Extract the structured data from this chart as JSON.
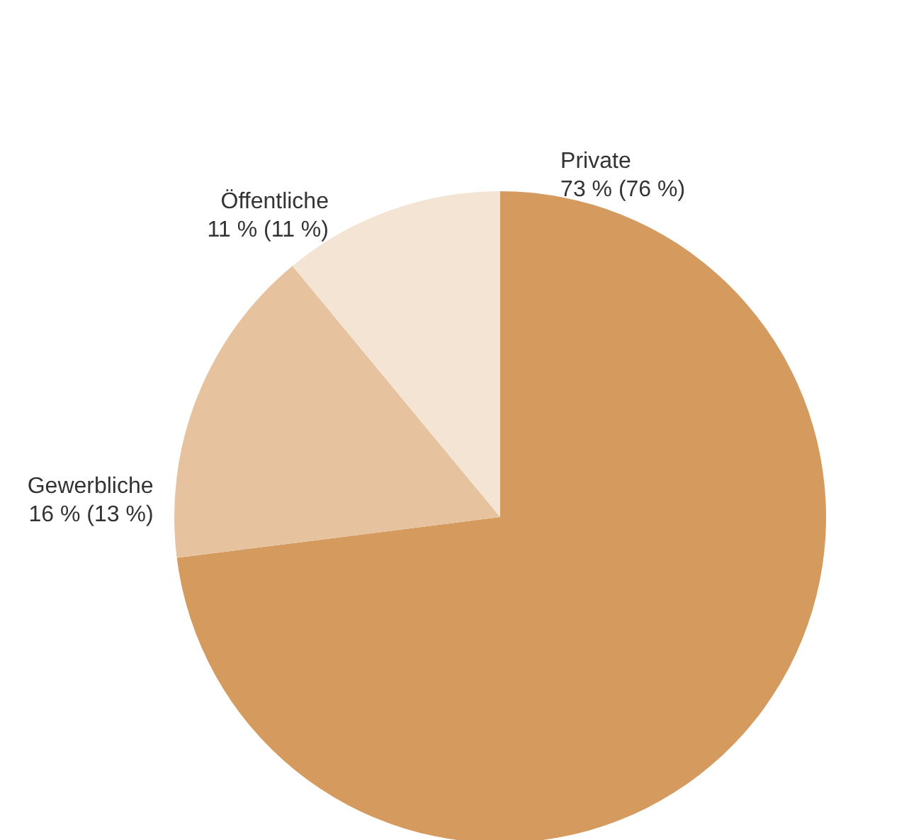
{
  "chart_data": {
    "type": "pie",
    "categories": [
      "Private",
      "Gewerbliche",
      "Öffentliche"
    ],
    "values": [
      73,
      16,
      11
    ],
    "value_labels": [
      "73 % (76 %)",
      "16 % (13 %)",
      "11 % (11 %)"
    ],
    "colors": [
      "#d49a5e",
      "#e6c29e",
      "#f4e4d3"
    ]
  }
}
